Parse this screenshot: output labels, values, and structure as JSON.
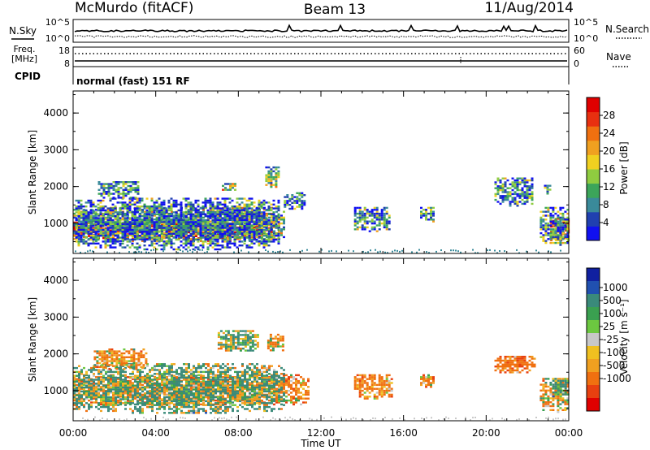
{
  "header": {
    "station": "McMurdo (fitACF)",
    "beam": "Beam 13",
    "date": "11/Aug/2014"
  },
  "noise_panel": {
    "left_label": "N.Sky",
    "right_label": "N.Search",
    "left_ticks": [
      "10^5",
      "10^0"
    ],
    "right_ticks": [
      "10^5",
      "10^0"
    ]
  },
  "freq_panel": {
    "left_label_1": "Freq.",
    "left_label_2": "[MHz]",
    "right_label": "Nave",
    "left_ticks": [
      "18",
      "8"
    ],
    "right_ticks": [
      "60",
      "0"
    ]
  },
  "cpid_panel": {
    "label": "CPID",
    "text": "normal (fast) 151 RF"
  },
  "chart_data": [
    {
      "type": "heatmap",
      "parameter": "power",
      "ylabel": "Slant Range [km]",
      "y_ticks": [
        "1000",
        "2000",
        "3000",
        "4000"
      ],
      "ylim": [
        180,
        4600
      ],
      "xlim_hours": [
        0,
        24
      ],
      "colorbar": {
        "label": "Power [dB]",
        "ticks": [
          "4",
          "8",
          "12",
          "16",
          "20",
          "24",
          "28"
        ],
        "colors": [
          "#1010f0",
          "#2040b0",
          "#3a8a9a",
          "#3ca55a",
          "#8fcc40",
          "#f0d020",
          "#f0a020",
          "#f07010",
          "#e83010",
          "#e00000"
        ]
      },
      "regions": [
        {
          "x": [
            0.0,
            9.6
          ],
          "range": [
            600,
            1100
          ],
          "value": 26
        },
        {
          "x": [
            0.0,
            10.2
          ],
          "range": [
            500,
            1500
          ],
          "value": 12
        },
        {
          "x": [
            0.1,
            9.9
          ],
          "range": [
            300,
            1750
          ],
          "value": 6
        },
        {
          "x": [
            1.2,
            3.2
          ],
          "range": [
            1700,
            2200
          ],
          "value": 8
        },
        {
          "x": [
            7.2,
            7.8
          ],
          "range": [
            1900,
            2150
          ],
          "value": 14
        },
        {
          "x": [
            9.3,
            10.0
          ],
          "range": [
            2000,
            2600
          ],
          "value": 12
        },
        {
          "x": [
            10.2,
            11.2
          ],
          "range": [
            1400,
            1900
          ],
          "value": 7
        },
        {
          "x": [
            13.6,
            15.3
          ],
          "range": [
            800,
            1500
          ],
          "value": 8
        },
        {
          "x": [
            16.8,
            17.4
          ],
          "range": [
            1000,
            1500
          ],
          "value": 8
        },
        {
          "x": [
            20.4,
            22.2
          ],
          "range": [
            1500,
            2300
          ],
          "value": 8
        },
        {
          "x": [
            22.8,
            23.1
          ],
          "range": [
            1800,
            2100
          ],
          "value": 10
        },
        {
          "x": [
            23.1,
            24.0
          ],
          "range": [
            500,
            1200
          ],
          "value": 22
        },
        {
          "x": [
            22.6,
            24.0
          ],
          "range": [
            400,
            1500
          ],
          "value": 8
        }
      ]
    },
    {
      "type": "heatmap",
      "parameter": "velocity",
      "ylabel": "Slant Range [km]",
      "y_ticks": [
        "1000",
        "2000",
        "3000",
        "4000"
      ],
      "ylim": [
        180,
        4600
      ],
      "xlim_hours": [
        0,
        24
      ],
      "x_ticks": [
        "00:00",
        "04:00",
        "08:00",
        "12:00",
        "16:00",
        "20:00",
        "00:00"
      ],
      "xlabel": "Time UT",
      "colorbar": {
        "label": "Velocity [m s⁻¹]",
        "ticks": [
          "1000",
          "500",
          "100",
          "25",
          "-25",
          "-100",
          "-500",
          "-1000"
        ],
        "colors": [
          "#1020a0",
          "#2050b0",
          "#3a8a7a",
          "#3aa050",
          "#6cc840",
          "#c8c8c8",
          "#f0c020",
          "#f0a020",
          "#f07010",
          "#e84010",
          "#e00000"
        ]
      },
      "regions": [
        {
          "x": [
            0.0,
            11.4
          ],
          "range": [
            600,
            1500
          ],
          "value": -150
        },
        {
          "x": [
            0.0,
            10.2
          ],
          "range": [
            400,
            1800
          ],
          "value": 80
        },
        {
          "x": [
            1.0,
            3.5
          ],
          "range": [
            1600,
            2200
          ],
          "value": -120
        },
        {
          "x": [
            7.0,
            9.0
          ],
          "range": [
            2100,
            2700
          ],
          "value": 60
        },
        {
          "x": [
            9.4,
            10.2
          ],
          "range": [
            2100,
            2600
          ],
          "value": -80
        },
        {
          "x": [
            13.6,
            15.4
          ],
          "range": [
            800,
            1500
          ],
          "value": -140
        },
        {
          "x": [
            16.8,
            17.4
          ],
          "range": [
            1100,
            1500
          ],
          "value": -150
        },
        {
          "x": [
            20.4,
            22.4
          ],
          "range": [
            1500,
            2000
          ],
          "value": -200
        },
        {
          "x": [
            22.6,
            24.0
          ],
          "range": [
            400,
            1400
          ],
          "value": -80
        },
        {
          "x": [
            23.2,
            24.0
          ],
          "range": [
            800,
            1400
          ],
          "value": 120
        }
      ]
    }
  ]
}
